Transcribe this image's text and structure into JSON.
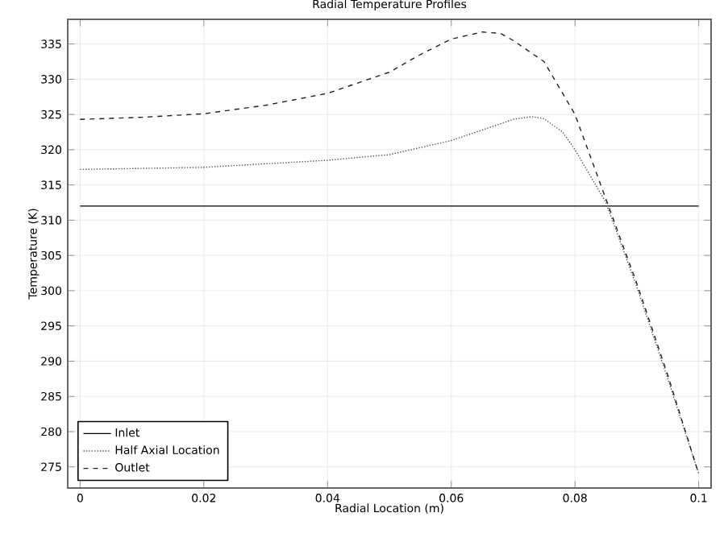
{
  "chart_data": {
    "type": "line",
    "title": "Radial Temperature Profiles",
    "xlabel": "Radial Location (m)",
    "ylabel": "Temperature (K)",
    "xlim": [
      -0.002,
      0.102
    ],
    "ylim": [
      272,
      338.5
    ],
    "xticks": [
      0,
      0.02,
      0.04,
      0.06,
      0.08,
      0.1
    ],
    "yticks": [
      275,
      280,
      285,
      290,
      295,
      300,
      305,
      310,
      315,
      320,
      325,
      330,
      335
    ],
    "grid": true,
    "legend": "bottom left",
    "marker": "none",
    "series": [
      {
        "name": "Inlet",
        "color": "#000000",
        "line_style": "solid",
        "x": [
          0,
          0.1
        ],
        "values": [
          312,
          312
        ]
      },
      {
        "name": "Half Axial Location",
        "color": "#555555",
        "line_style": "dotted",
        "x": [
          0,
          0.02,
          0.03,
          0.04,
          0.05,
          0.06,
          0.065,
          0.07,
          0.073,
          0.075,
          0.078,
          0.08,
          0.085,
          0.09,
          0.095,
          0.1
        ],
        "values": [
          317.2,
          317.5,
          318,
          318.5,
          319.3,
          321.3,
          322.8,
          324.3,
          324.7,
          324.4,
          322.5,
          320,
          312.5,
          300.5,
          287.5,
          274
        ]
      },
      {
        "name": "Outlet",
        "color": "#222222",
        "line_style": "dashed",
        "x": [
          0,
          0.01,
          0.02,
          0.03,
          0.04,
          0.05,
          0.055,
          0.06,
          0.065,
          0.068,
          0.07,
          0.075,
          0.08,
          0.085,
          0.09,
          0.095,
          0.1
        ],
        "values": [
          324.3,
          324.6,
          325.1,
          326.3,
          328,
          331,
          333.5,
          335.7,
          336.7,
          336.5,
          335.5,
          332.5,
          325,
          313,
          301,
          288,
          274
        ]
      }
    ]
  }
}
